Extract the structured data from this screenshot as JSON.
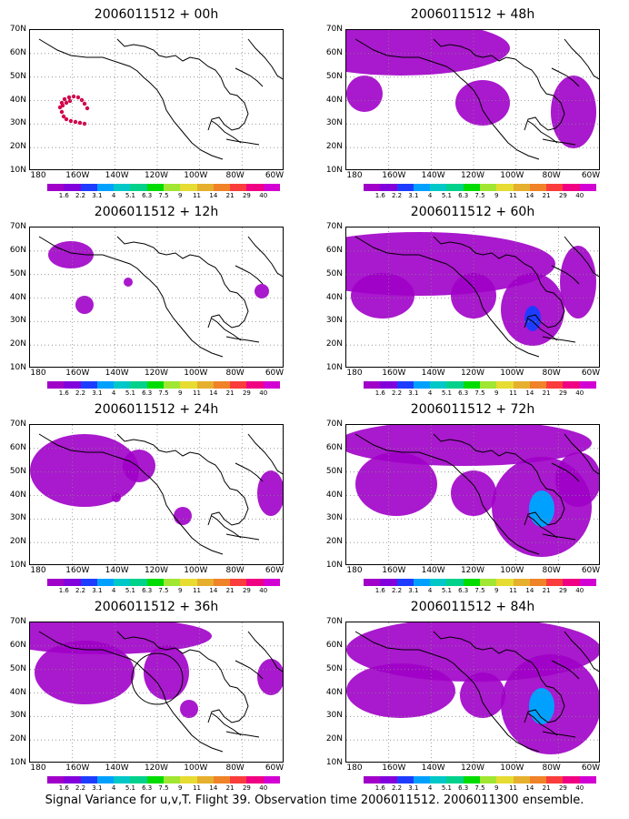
{
  "panels": [
    {
      "title": "2006011512 + 00h"
    },
    {
      "title": "2006011512 + 48h"
    },
    {
      "title": "2006011512 + 12h"
    },
    {
      "title": "2006011512 + 60h"
    },
    {
      "title": "2006011512 + 24h"
    },
    {
      "title": "2006011512 + 72h"
    },
    {
      "title": "2006011512 + 36h"
    },
    {
      "title": "2006011512 + 84h"
    }
  ],
  "lat_labels": [
    "70N",
    "60N",
    "50N",
    "40N",
    "30N",
    "20N",
    "10N"
  ],
  "lon_labels": [
    "180",
    "160W",
    "140W",
    "120W",
    "100W",
    "80W",
    "60W"
  ],
  "colorbar": {
    "labels": [
      "1.6",
      "2.2",
      "3.1",
      "4",
      "5.1",
      "6.3",
      "7.5",
      "9",
      "11",
      "14",
      "21",
      "29",
      "40"
    ],
    "colors": [
      "#a000c8",
      "#8200dc",
      "#1e3cff",
      "#00a0ff",
      "#00c8c8",
      "#00d28c",
      "#00dc00",
      "#a0e632",
      "#e6dc32",
      "#e6af2d",
      "#f08228",
      "#fa3c3c",
      "#f00082",
      "#d200d2"
    ]
  },
  "caption": "Signal Variance for u,v,T. Flight 39. Observation time 2006011512. 2006011300 ensemble."
}
